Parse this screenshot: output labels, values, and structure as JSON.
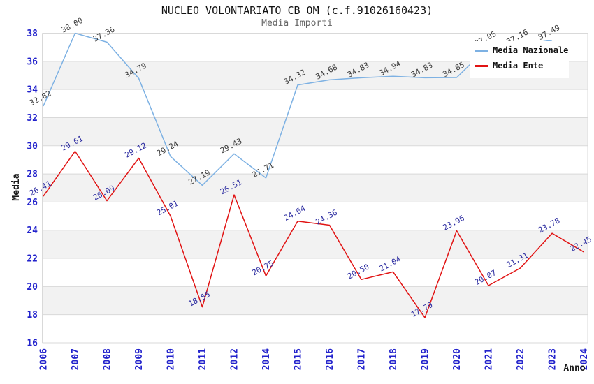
{
  "header": {
    "title": "NUCLEO VOLONTARIATO CB OM (c.f.91026160423)",
    "subtitle": "Media Importi"
  },
  "chart_data": {
    "type": "line",
    "categories": [
      "2006",
      "2007",
      "2008",
      "2009",
      "2010",
      "2011",
      "2012",
      "2014",
      "2015",
      "2016",
      "2017",
      "2018",
      "2019",
      "2020",
      "2021",
      "2022",
      "2023",
      "2024"
    ],
    "series": [
      {
        "name": "Media Nazionale",
        "color": "#7db1e3",
        "label_color": "#3c3c3c",
        "values": [
          32.82,
          38.0,
          37.36,
          34.79,
          29.24,
          27.19,
          29.43,
          27.71,
          34.32,
          34.68,
          34.83,
          34.94,
          34.83,
          34.85,
          37.05,
          37.16,
          37.49,
          null
        ]
      },
      {
        "name": "Media Ente",
        "color": "#e11414",
        "label_color": "#2b2ba0",
        "values": [
          26.41,
          29.61,
          26.09,
          29.12,
          25.01,
          18.55,
          26.51,
          20.75,
          24.64,
          24.36,
          20.5,
          21.04,
          17.79,
          23.96,
          20.07,
          21.31,
          23.78,
          22.45
        ]
      }
    ],
    "xlabel": "Anno",
    "ylabel": "Media",
    "ylim": [
      16,
      38
    ],
    "ytick_step": 2,
    "yticks": [
      16,
      18,
      20,
      22,
      24,
      26,
      28,
      30,
      32,
      34,
      36,
      38
    ],
    "legend_position": "top-right",
    "grid": {
      "horizontal_lines": true,
      "alternating_gray_bands": true
    }
  },
  "legend": {
    "items": [
      {
        "label": "Media Nazionale",
        "color": "#7db1e3"
      },
      {
        "label": "Media Ente",
        "color": "#e11414"
      }
    ]
  },
  "colors": {
    "tick_label": "#2222cc",
    "grid_line": "#d9d9d9",
    "band_gray": "#f2f2f2",
    "axis_title": "#1a1a1a",
    "subtitle": "#666666",
    "background": "#ffffff"
  }
}
